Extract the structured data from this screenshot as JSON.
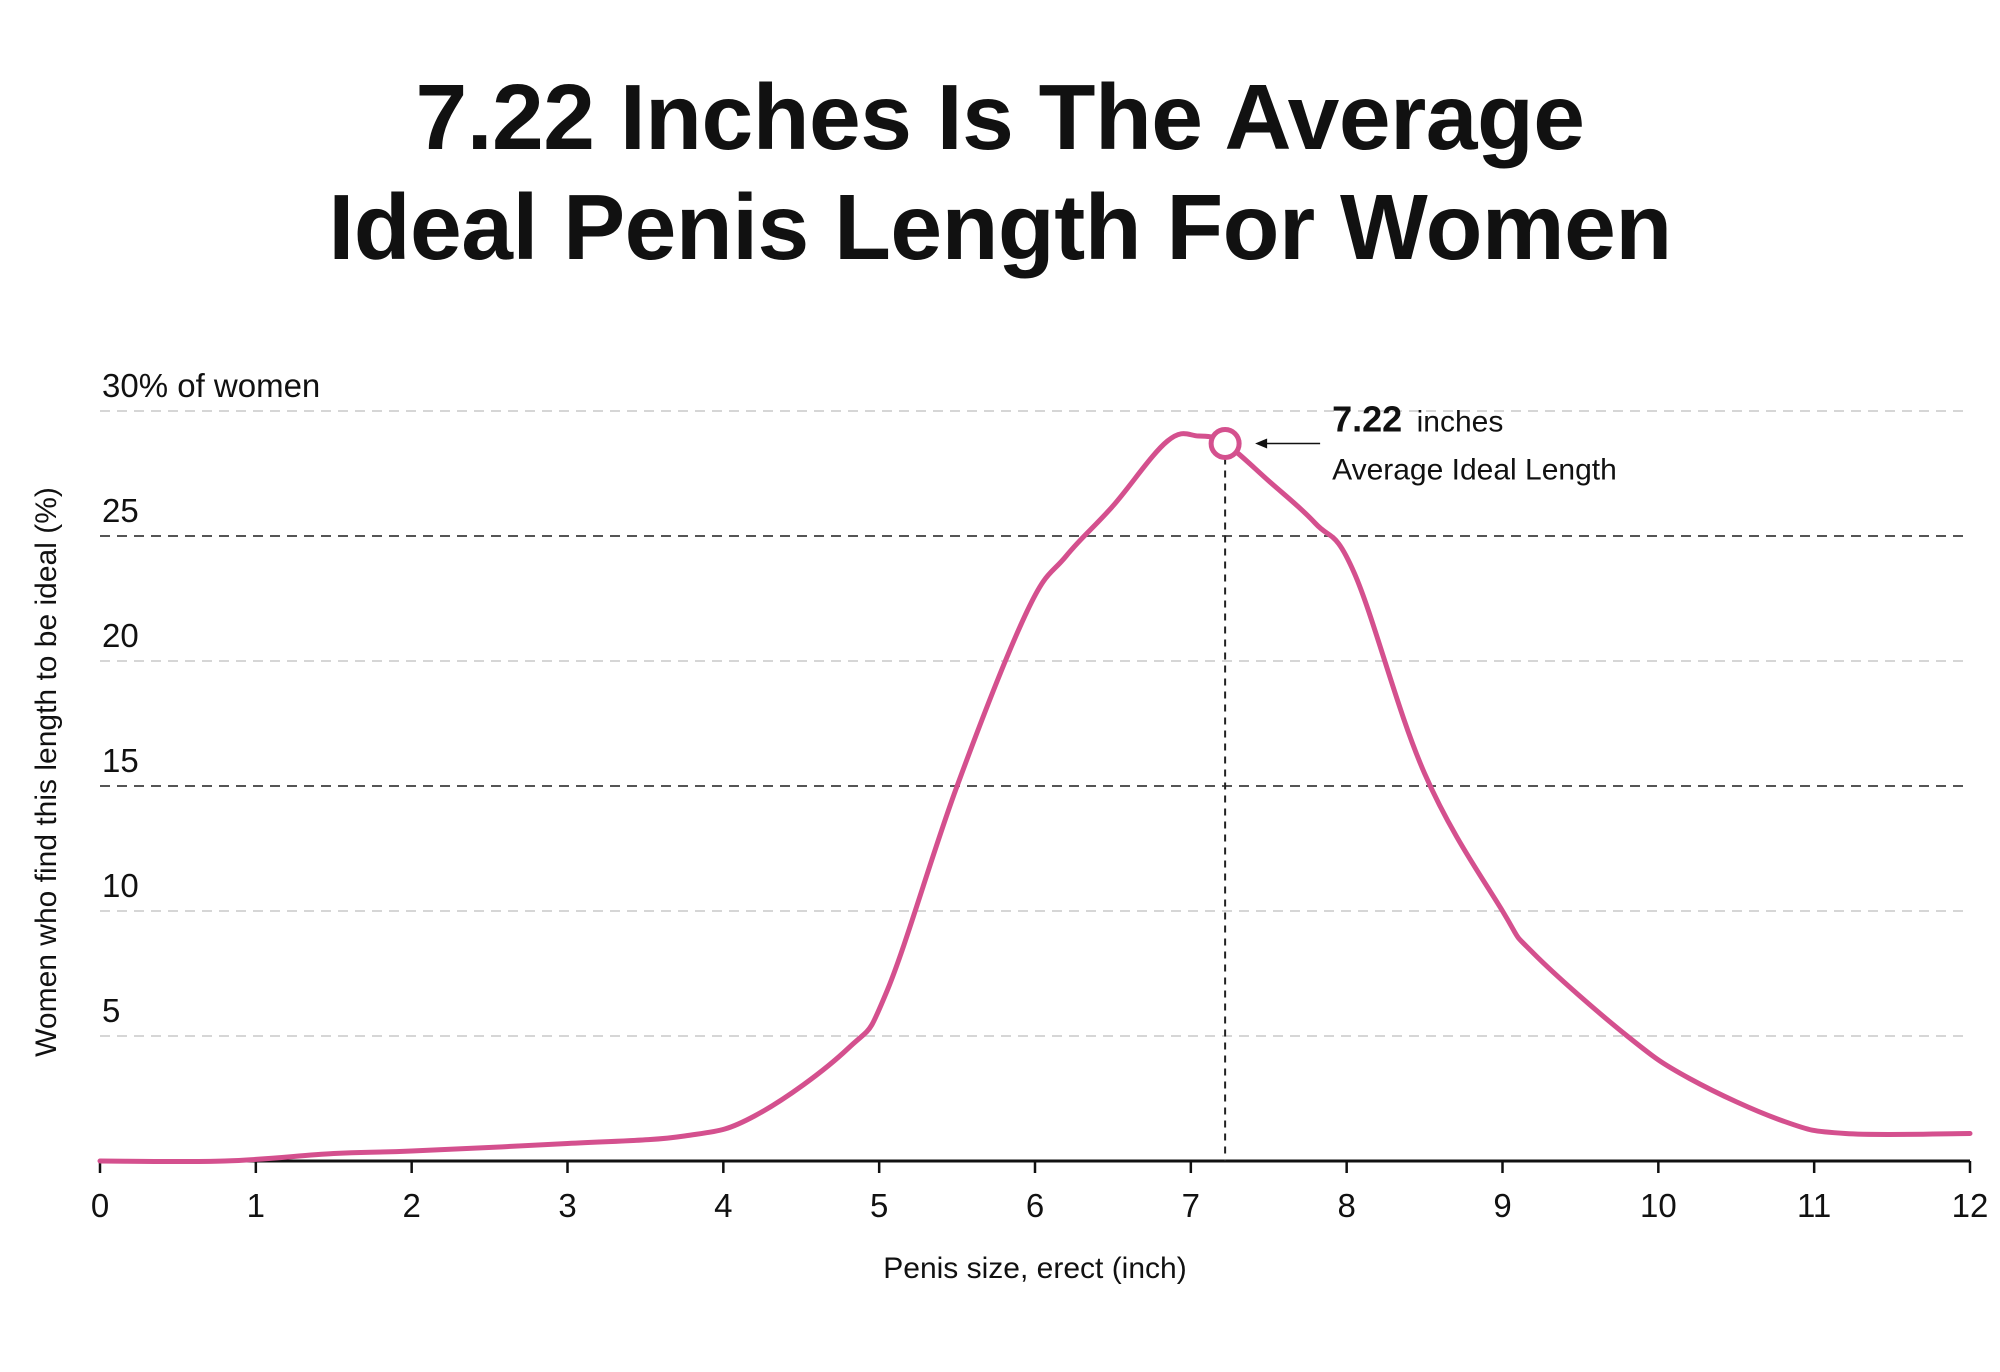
{
  "title": {
    "line1": "7.22 Inches Is The Average",
    "line2": "Ideal Penis Length For Women"
  },
  "chart_data": {
    "type": "line",
    "title": "7.22 Inches Is The Average Ideal Penis Length For Women",
    "xlabel": "Penis size, erect (inch)",
    "ylabel": "Women who find this length to be ideal (%)",
    "xlim": [
      0,
      12
    ],
    "ylim": [
      0,
      30
    ],
    "x_ticks": [
      0,
      1,
      2,
      3,
      4,
      5,
      6,
      7,
      8,
      9,
      10,
      11,
      12
    ],
    "x_tick_labels": [
      "0",
      "1",
      "2",
      "3",
      "4",
      "5",
      "6",
      "7",
      "8",
      "9",
      "10",
      "11",
      "12"
    ],
    "y_ticks": [
      {
        "value": 5,
        "label": "5"
      },
      {
        "value": 10,
        "label": "10"
      },
      {
        "value": 15,
        "label": "15"
      },
      {
        "value": 20,
        "label": "20"
      },
      {
        "value": 25,
        "label": "25"
      },
      {
        "value": 30,
        "label": "30% of women"
      }
    ],
    "grid": true,
    "series": [
      {
        "color": "#d4508e",
        "x": [
          0,
          0.8,
          1.5,
          2,
          3,
          3.75,
          4.2,
          4.8,
          5.05,
          5.5,
          5.95,
          6.2,
          6.5,
          6.85,
          7.05,
          7.22,
          7.5,
          7.8,
          8.05,
          8.5,
          9,
          9.2,
          9.8,
          10.2,
          10.8,
          11.2,
          12
        ],
        "y": [
          0,
          0,
          0.3,
          0.4,
          0.7,
          1,
          1.8,
          4.5,
          6.8,
          15,
          22,
          24.2,
          26.2,
          28.8,
          29,
          28.7,
          27.2,
          25.5,
          23.5,
          15.5,
          10,
          8.3,
          5,
          3.3,
          1.6,
          1.1,
          1.1
        ]
      }
    ],
    "marker": {
      "x": 7.22,
      "y": 28.7,
      "value_label": "7.22",
      "unit_label": "inches",
      "caption": "Average Ideal Length"
    }
  },
  "colors": {
    "line": "#d4508e",
    "text": "#111111",
    "grid_light": "#c8c8c8",
    "grid_dark": "#555555"
  }
}
